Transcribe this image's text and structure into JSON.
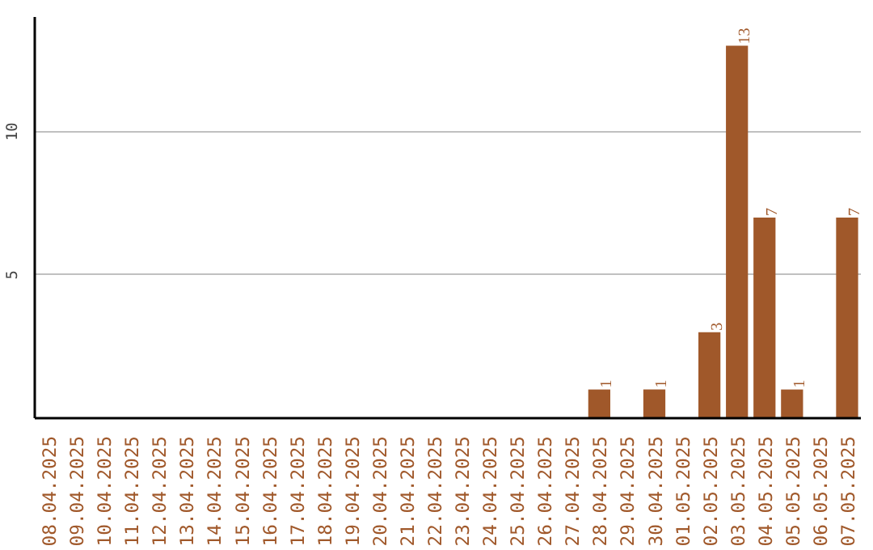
{
  "chart_data": {
    "type": "bar",
    "categories": [
      "08.04.2025",
      "09.04.2025",
      "10.04.2025",
      "11.04.2025",
      "12.04.2025",
      "13.04.2025",
      "14.04.2025",
      "15.04.2025",
      "16.04.2025",
      "17.04.2025",
      "18.04.2025",
      "19.04.2025",
      "20.04.2025",
      "21.04.2025",
      "22.04.2025",
      "23.04.2025",
      "24.04.2025",
      "25.04.2025",
      "26.04.2025",
      "27.04.2025",
      "28.04.2025",
      "29.04.2025",
      "30.04.2025",
      "01.05.2025",
      "02.05.2025",
      "03.05.2025",
      "04.05.2025",
      "05.05.2025",
      "06.05.2025",
      "07.05.2025"
    ],
    "values": [
      0,
      0,
      0,
      0,
      0,
      0,
      0,
      0,
      0,
      0,
      0,
      0,
      0,
      0,
      0,
      0,
      0,
      0,
      0,
      0,
      1,
      0,
      1,
      0,
      3,
      13,
      7,
      1,
      0,
      7
    ],
    "value_labels": [
      null,
      null,
      null,
      null,
      null,
      null,
      null,
      null,
      null,
      null,
      null,
      null,
      null,
      null,
      null,
      null,
      null,
      null,
      null,
      null,
      "1",
      null,
      "1",
      null,
      "3",
      "13",
      "7",
      "1",
      null,
      "7"
    ],
    "color": "#a0582a",
    "ylim": [
      0,
      14
    ],
    "yticks": [
      5,
      10
    ],
    "grid": "y"
  }
}
